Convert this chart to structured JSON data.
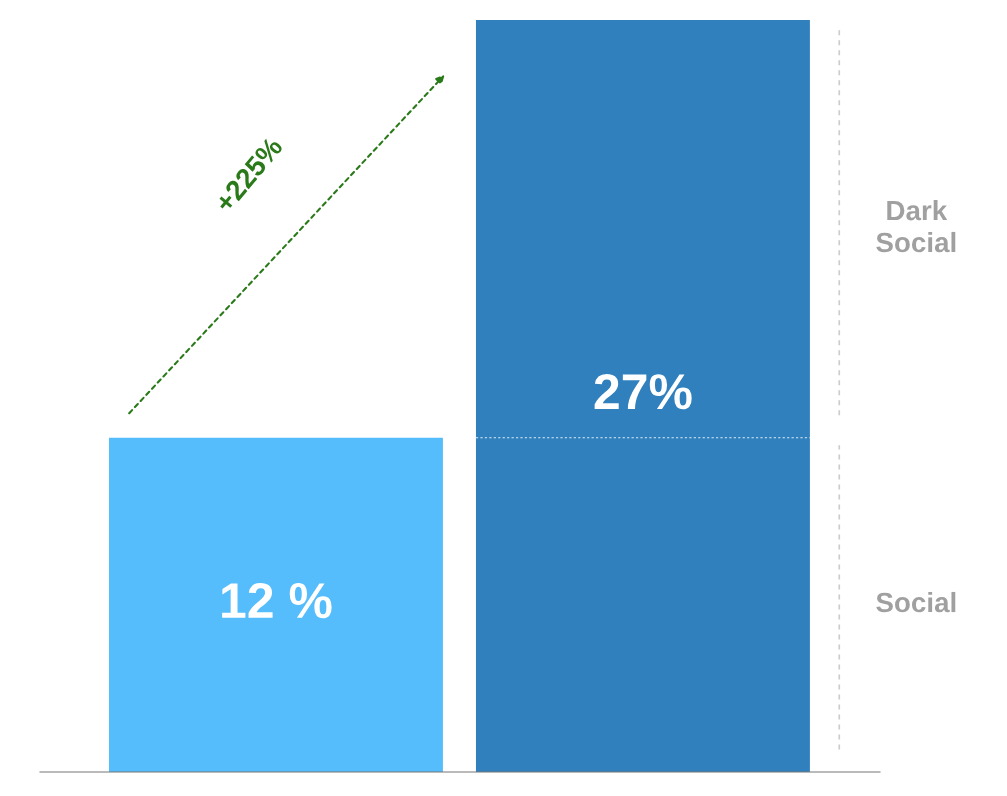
{
  "chart_data": {
    "type": "bar",
    "categories": [
      null,
      null
    ],
    "series": [
      {
        "colors": [
          "#55bdfc",
          "#2f80bd"
        ],
        "values": [
          12,
          27
        ],
        "value_labels": [
          "12 %",
          "27%"
        ]
      }
    ],
    "ylim": [
      0,
      27
    ],
    "ref_lines": [
      {
        "axis": "y",
        "value": 12,
        "color": "#ffffff",
        "line_style": "dotted"
      }
    ],
    "annotations": [
      "+225%",
      "Social",
      "Dark Social"
    ]
  }
}
